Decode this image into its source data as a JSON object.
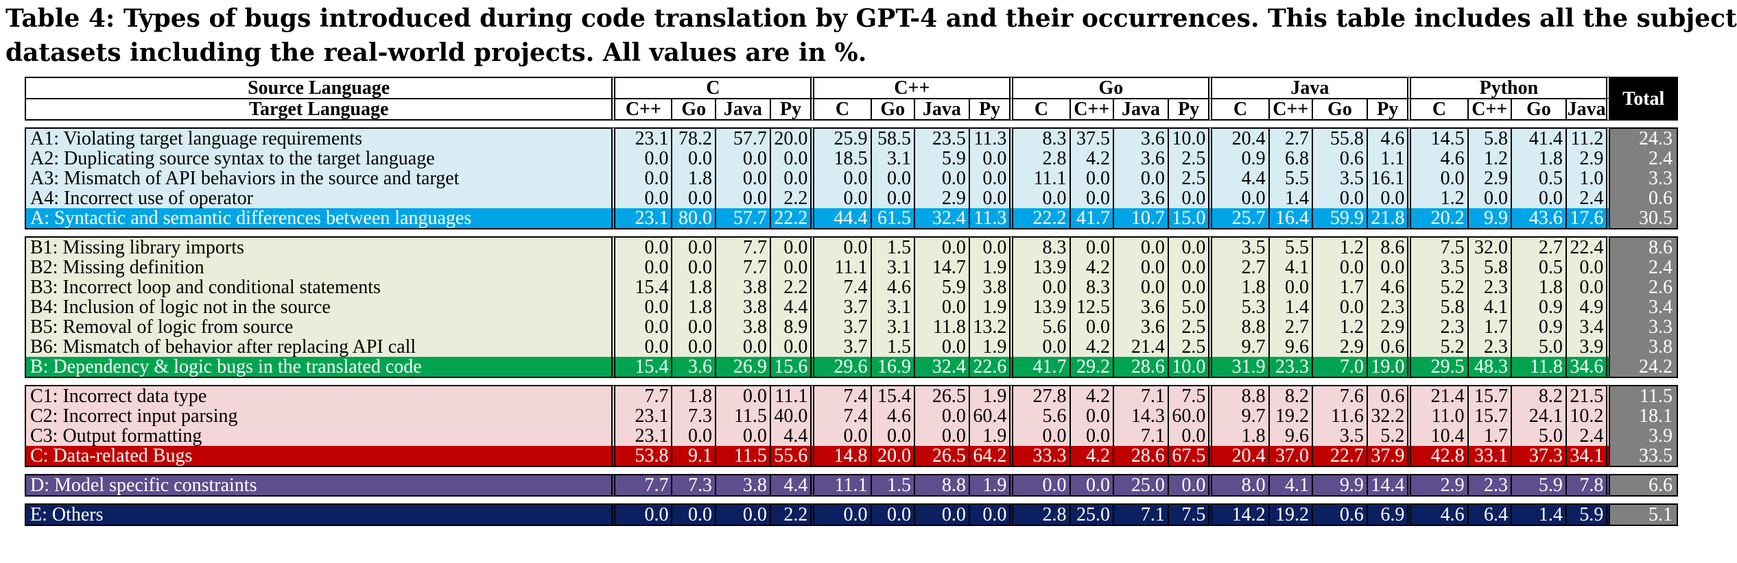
{
  "caption": {
    "line1": "Table 4: Types of bugs introduced during code translation by GPT-4 and their occurrences. This table includes all the subject",
    "line2": "datasets including the real-world projects. All values are in %."
  },
  "header": {
    "source_label": "Source Language",
    "target_label": "Target Language",
    "total_label": "Total",
    "sources": [
      {
        "name": "C",
        "targets": [
          "C++",
          "Go",
          "Java",
          "Py"
        ]
      },
      {
        "name": "C++",
        "targets": [
          "C",
          "Go",
          "Java",
          "Py"
        ]
      },
      {
        "name": "Go",
        "targets": [
          "C",
          "C++",
          "Java",
          "Py"
        ]
      },
      {
        "name": "Java",
        "targets": [
          "C",
          "C++",
          "Go",
          "Py"
        ]
      },
      {
        "name": "Python",
        "targets": [
          "C",
          "C++",
          "Go",
          "Java"
        ]
      }
    ]
  },
  "groups": [
    {
      "id": "A",
      "rows": [
        {
          "label": "A1: Violating target language requirements",
          "values": [
            "23.1",
            "78.2",
            "57.7",
            "20.0",
            "25.9",
            "58.5",
            "23.5",
            "11.3",
            "8.3",
            "37.5",
            "3.6",
            "10.0",
            "20.4",
            "2.7",
            "55.8",
            "4.6",
            "14.5",
            "5.8",
            "41.4",
            "11.2"
          ],
          "total": "24.3"
        },
        {
          "label": "A2: Duplicating source syntax to the target language",
          "values": [
            "0.0",
            "0.0",
            "0.0",
            "0.0",
            "18.5",
            "3.1",
            "5.9",
            "0.0",
            "2.8",
            "4.2",
            "3.6",
            "2.5",
            "0.9",
            "6.8",
            "0.6",
            "1.1",
            "4.6",
            "1.2",
            "1.8",
            "2.9"
          ],
          "total": "2.4"
        },
        {
          "label": "A3: Mismatch of API behaviors in the source and target",
          "values": [
            "0.0",
            "1.8",
            "0.0",
            "0.0",
            "0.0",
            "0.0",
            "0.0",
            "0.0",
            "11.1",
            "0.0",
            "0.0",
            "2.5",
            "4.4",
            "5.5",
            "3.5",
            "16.1",
            "0.0",
            "2.9",
            "0.5",
            "1.0"
          ],
          "total": "3.3"
        },
        {
          "label": "A4: Incorrect use of operator",
          "values": [
            "0.0",
            "0.0",
            "0.0",
            "2.2",
            "0.0",
            "0.0",
            "2.9",
            "0.0",
            "0.0",
            "0.0",
            "3.6",
            "0.0",
            "0.0",
            "1.4",
            "0.0",
            "0.0",
            "1.2",
            "0.0",
            "0.0",
            "2.4"
          ],
          "total": "0.6"
        }
      ],
      "summary": {
        "label": "A: Syntactic and semantic differences between languages",
        "values": [
          "23.1",
          "80.0",
          "57.7",
          "22.2",
          "44.4",
          "61.5",
          "32.4",
          "11.3",
          "22.2",
          "41.7",
          "10.7",
          "15.0",
          "25.7",
          "16.4",
          "59.9",
          "21.8",
          "20.2",
          "9.9",
          "43.6",
          "17.6"
        ],
        "total": "30.5"
      }
    },
    {
      "id": "B",
      "rows": [
        {
          "label": "B1: Missing library imports",
          "values": [
            "0.0",
            "0.0",
            "7.7",
            "0.0",
            "0.0",
            "1.5",
            "0.0",
            "0.0",
            "8.3",
            "0.0",
            "0.0",
            "0.0",
            "3.5",
            "5.5",
            "1.2",
            "8.6",
            "7.5",
            "32.0",
            "2.7",
            "22.4"
          ],
          "total": "8.6"
        },
        {
          "label": "B2: Missing definition",
          "values": [
            "0.0",
            "0.0",
            "7.7",
            "0.0",
            "11.1",
            "3.1",
            "14.7",
            "1.9",
            "13.9",
            "4.2",
            "0.0",
            "0.0",
            "2.7",
            "4.1",
            "0.0",
            "0.0",
            "3.5",
            "5.8",
            "0.5",
            "0.0"
          ],
          "total": "2.4"
        },
        {
          "label": "B3: Incorrect loop and conditional statements",
          "values": [
            "15.4",
            "1.8",
            "3.8",
            "2.2",
            "7.4",
            "4.6",
            "5.9",
            "3.8",
            "0.0",
            "8.3",
            "0.0",
            "0.0",
            "1.8",
            "0.0",
            "1.7",
            "4.6",
            "5.2",
            "2.3",
            "1.8",
            "0.0"
          ],
          "total": "2.6"
        },
        {
          "label": "B4: Inclusion of logic not in the source",
          "values": [
            "0.0",
            "1.8",
            "3.8",
            "4.4",
            "3.7",
            "3.1",
            "0.0",
            "1.9",
            "13.9",
            "12.5",
            "3.6",
            "5.0",
            "5.3",
            "1.4",
            "0.0",
            "2.3",
            "5.8",
            "4.1",
            "0.9",
            "4.9"
          ],
          "total": "3.4"
        },
        {
          "label": "B5: Removal of logic from source",
          "values": [
            "0.0",
            "0.0",
            "3.8",
            "8.9",
            "3.7",
            "3.1",
            "11.8",
            "13.2",
            "5.6",
            "0.0",
            "3.6",
            "2.5",
            "8.8",
            "2.7",
            "1.2",
            "2.9",
            "2.3",
            "1.7",
            "0.9",
            "3.4"
          ],
          "total": "3.3"
        },
        {
          "label": "B6: Mismatch of behavior after replacing API call",
          "values": [
            "0.0",
            "0.0",
            "0.0",
            "0.0",
            "3.7",
            "1.5",
            "0.0",
            "1.9",
            "0.0",
            "4.2",
            "21.4",
            "2.5",
            "9.7",
            "9.6",
            "2.9",
            "0.6",
            "5.2",
            "2.3",
            "5.0",
            "3.9"
          ],
          "total": "3.8"
        }
      ],
      "summary": {
        "label": "B: Dependency & logic bugs in the translated code",
        "values": [
          "15.4",
          "3.6",
          "26.9",
          "15.6",
          "29.6",
          "16.9",
          "32.4",
          "22.6",
          "41.7",
          "29.2",
          "28.6",
          "10.0",
          "31.9",
          "23.3",
          "7.0",
          "19.0",
          "29.5",
          "48.3",
          "11.8",
          "34.6"
        ],
        "total": "24.2"
      }
    },
    {
      "id": "C",
      "rows": [
        {
          "label": "C1: Incorrect data type",
          "values": [
            "7.7",
            "1.8",
            "0.0",
            "11.1",
            "7.4",
            "15.4",
            "26.5",
            "1.9",
            "27.8",
            "4.2",
            "7.1",
            "7.5",
            "8.8",
            "8.2",
            "7.6",
            "0.6",
            "21.4",
            "15.7",
            "8.2",
            "21.5"
          ],
          "total": "11.5"
        },
        {
          "label": "C2: Incorrect input parsing",
          "values": [
            "23.1",
            "7.3",
            "11.5",
            "40.0",
            "7.4",
            "4.6",
            "0.0",
            "60.4",
            "5.6",
            "0.0",
            "14.3",
            "60.0",
            "9.7",
            "19.2",
            "11.6",
            "32.2",
            "11.0",
            "15.7",
            "24.1",
            "10.2"
          ],
          "total": "18.1"
        },
        {
          "label": "C3: Output formatting",
          "values": [
            "23.1",
            "0.0",
            "0.0",
            "4.4",
            "0.0",
            "0.0",
            "0.0",
            "1.9",
            "0.0",
            "0.0",
            "7.1",
            "0.0",
            "1.8",
            "9.6",
            "3.5",
            "5.2",
            "10.4",
            "1.7",
            "5.0",
            "2.4"
          ],
          "total": "3.9"
        }
      ],
      "summary": {
        "label": "C: Data-related Bugs",
        "values": [
          "53.8",
          "9.1",
          "11.5",
          "55.6",
          "14.8",
          "20.0",
          "26.5",
          "64.2",
          "33.3",
          "4.2",
          "28.6",
          "67.5",
          "20.4",
          "37.0",
          "22.7",
          "37.9",
          "42.8",
          "33.1",
          "37.3",
          "34.1"
        ],
        "total": "33.5"
      }
    },
    {
      "id": "D",
      "rows": [],
      "summary": {
        "label": "D: Model specific constraints",
        "values": [
          "7.7",
          "7.3",
          "3.8",
          "4.4",
          "11.1",
          "1.5",
          "8.8",
          "1.9",
          "0.0",
          "0.0",
          "25.0",
          "0.0",
          "8.0",
          "4.1",
          "9.9",
          "14.4",
          "2.9",
          "2.3",
          "5.9",
          "7.8"
        ],
        "total": "6.6"
      }
    },
    {
      "id": "E",
      "rows": [],
      "summary": {
        "label": "E: Others",
        "values": [
          "0.0",
          "0.0",
          "0.0",
          "2.2",
          "0.0",
          "0.0",
          "0.0",
          "0.0",
          "2.8",
          "25.0",
          "7.1",
          "7.5",
          "14.2",
          "19.2",
          "0.6",
          "6.9",
          "4.6",
          "6.4",
          "1.4",
          "5.9"
        ],
        "total": "5.1"
      }
    }
  ],
  "colors": {
    "A_light": "#d8ecf4",
    "A_dark": "#00a5e8",
    "B_light": "#e9edd9",
    "B_dark": "#00a450",
    "C_light": "#f3d6d8",
    "C_dark": "#c00000",
    "D": "#5e4e8e",
    "E": "#0b2060",
    "total": "#808080"
  }
}
